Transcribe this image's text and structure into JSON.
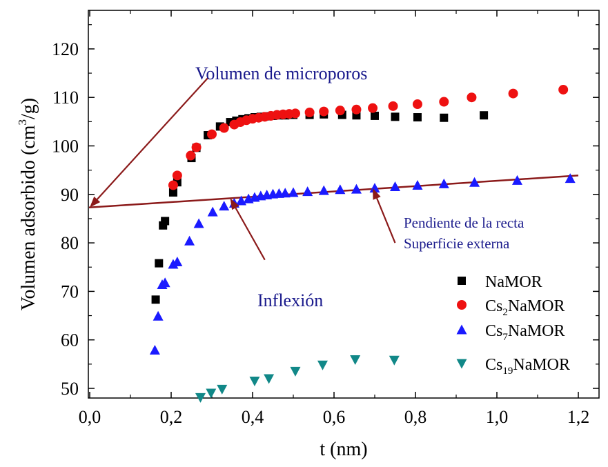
{
  "chart_data": {
    "type": "scatter",
    "xlabel": "t (nm)",
    "ylabel": {
      "main": "Volumen adsorbido (cm",
      "sup": "3",
      "tail": "/g)"
    },
    "xlim": [
      0.0,
      1.25
    ],
    "ylim": [
      47.5,
      128
    ],
    "xticks": [
      0.0,
      0.2,
      0.4,
      0.6,
      0.8,
      1.0,
      1.2
    ],
    "xtick_labels": [
      "0,0",
      "0,2",
      "0,4",
      "0,6",
      "0,8",
      "1,0",
      "1,2"
    ],
    "yticks": [
      50,
      60,
      70,
      80,
      90,
      100,
      110,
      120
    ],
    "ytick_labels": [
      "50",
      "60",
      "70",
      "80",
      "90",
      "100",
      "110",
      "120"
    ],
    "grid": false,
    "legend_position": "bottom-right",
    "series": [
      {
        "name": "NaMOR",
        "name_parts": [
          "NaMOR",
          "",
          ""
        ],
        "marker": "square",
        "color": "#000000",
        "x": [
          0.162,
          0.17,
          0.18,
          0.185,
          0.205,
          0.215,
          0.25,
          0.262,
          0.29,
          0.32,
          0.345,
          0.36,
          0.375,
          0.39,
          0.405,
          0.42,
          0.435,
          0.45,
          0.465,
          0.48,
          0.5,
          0.54,
          0.575,
          0.62,
          0.655,
          0.7,
          0.75,
          0.805,
          0.87,
          0.968
        ],
        "y": [
          68.3,
          75.8,
          83.6,
          84.5,
          90.4,
          92.5,
          97.5,
          99.6,
          102.2,
          104.0,
          104.9,
          105.2,
          105.5,
          105.7,
          105.9,
          106.0,
          106.1,
          106.2,
          106.3,
          106.3,
          106.4,
          106.4,
          106.5,
          106.4,
          106.3,
          106.2,
          106.0,
          105.9,
          105.8,
          106.3
        ]
      },
      {
        "name": "Cs2NaMOR",
        "name_parts": [
          "Cs",
          "2",
          "NaMOR"
        ],
        "marker": "circle",
        "color": "#ee1111",
        "x": [
          0.205,
          0.215,
          0.248,
          0.262,
          0.3,
          0.33,
          0.355,
          0.37,
          0.385,
          0.4,
          0.415,
          0.43,
          0.445,
          0.46,
          0.475,
          0.49,
          0.505,
          0.54,
          0.575,
          0.615,
          0.655,
          0.695,
          0.745,
          0.805,
          0.87,
          0.938,
          1.04,
          1.163
        ],
        "y": [
          91.9,
          93.9,
          98.0,
          99.7,
          102.4,
          103.7,
          104.4,
          104.9,
          105.3,
          105.6,
          105.8,
          106.0,
          106.2,
          106.4,
          106.5,
          106.6,
          106.7,
          106.9,
          107.1,
          107.3,
          107.5,
          107.8,
          108.2,
          108.6,
          109.1,
          110.0,
          110.8,
          111.6
        ]
      },
      {
        "name": "Cs7NaMOR",
        "name_parts": [
          "Cs",
          "7",
          "NaMOR"
        ],
        "marker": "triangle-up",
        "color": "#1a1aff",
        "x": [
          0.16,
          0.168,
          0.178,
          0.185,
          0.205,
          0.215,
          0.245,
          0.268,
          0.302,
          0.33,
          0.355,
          0.372,
          0.39,
          0.405,
          0.42,
          0.435,
          0.45,
          0.465,
          0.48,
          0.5,
          0.535,
          0.575,
          0.615,
          0.655,
          0.7,
          0.75,
          0.805,
          0.87,
          0.945,
          1.05,
          1.18
        ],
        "y": [
          57.9,
          64.9,
          71.4,
          71.8,
          75.6,
          76.1,
          80.4,
          84.0,
          86.4,
          87.6,
          88.2,
          88.7,
          89.1,
          89.4,
          89.7,
          89.9,
          90.1,
          90.2,
          90.3,
          90.4,
          90.6,
          90.8,
          91.0,
          91.1,
          91.3,
          91.6,
          91.9,
          92.2,
          92.5,
          92.9,
          93.3
        ]
      },
      {
        "name": "Cs19NaMOR",
        "name_parts": [
          "Cs",
          "19",
          "NaMOR"
        ],
        "marker": "triangle-down",
        "color": "#118888",
        "x": [
          0.272,
          0.298,
          0.325,
          0.405,
          0.44,
          0.505,
          0.572,
          0.652,
          0.748
        ],
        "y": [
          48.1,
          49.0,
          49.8,
          51.5,
          52.0,
          53.5,
          54.8,
          55.9,
          55.8
        ]
      }
    ],
    "fit_line": {
      "x": [
        0.0,
        1.2
      ],
      "y": [
        87.3,
        93.9
      ],
      "color": "#8b1a1a"
    },
    "annotations": {
      "microporos": "Volumen de microporos",
      "pendiente": "Pendiente de la recta",
      "superficie": "Superficie externa",
      "inflexion": "Inflexión"
    },
    "annotation_color": "#1a1a8c",
    "arrow_color": "#8b1a1a",
    "arrows": [
      {
        "from": [
          0.29,
          114.0
        ],
        "to": [
          0.0,
          87.3
        ]
      },
      {
        "from": [
          0.43,
          76.5
        ],
        "to": [
          0.345,
          89.2
        ]
      },
      {
        "from": [
          0.75,
          80.0
        ],
        "to": [
          0.695,
          91.3
        ]
      }
    ]
  }
}
